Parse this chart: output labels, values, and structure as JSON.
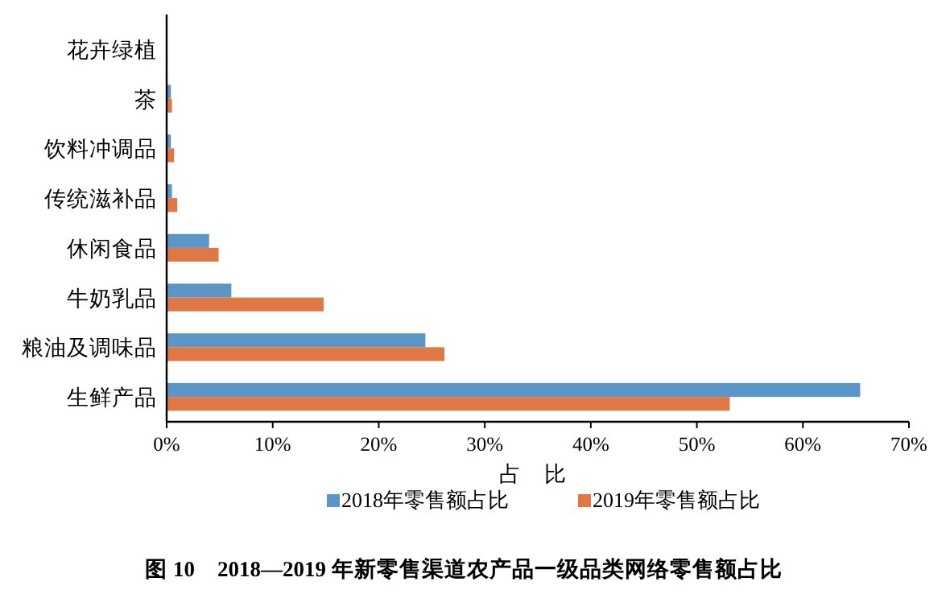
{
  "chart_data": {
    "type": "bar",
    "orientation": "horizontal",
    "title": "图 10　2018—2019 年新零售渠道农产品一级品类网络零售额占比",
    "xlabel": "占　比",
    "categories": [
      "花卉绿植",
      "茶",
      "饮料冲调品",
      "传统滋补品",
      "休闲食品",
      "牛奶乳品",
      "粮油及调味品",
      "生鲜产品"
    ],
    "series": [
      {
        "name": "2018年零售额占比",
        "color": "#5b96c8",
        "values": [
          0,
          0.4,
          0.4,
          0.5,
          4.0,
          6.1,
          24.4,
          65.4
        ]
      },
      {
        "name": "2019年零售额占比",
        "color": "#e07845",
        "values": [
          0,
          0.5,
          0.7,
          1.0,
          4.9,
          14.8,
          26.2,
          53.1
        ]
      }
    ],
    "xlim": [
      0,
      70
    ],
    "xticks": [
      {
        "value": 0,
        "label": "0%"
      },
      {
        "value": 10,
        "label": "10%"
      },
      {
        "value": 20,
        "label": "20%"
      },
      {
        "value": 30,
        "label": "30%"
      },
      {
        "value": 40,
        "label": "40%"
      },
      {
        "value": 50,
        "label": "50%"
      },
      {
        "value": 60,
        "label": "60%"
      },
      {
        "value": 70,
        "label": "70%"
      }
    ],
    "legend": "bottom",
    "grid": false
  }
}
